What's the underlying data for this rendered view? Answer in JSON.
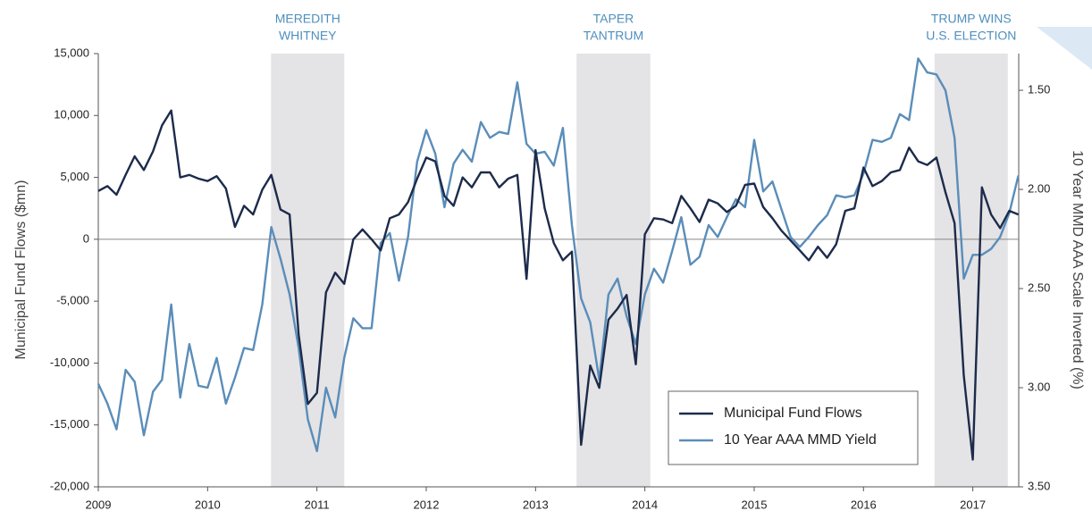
{
  "chart_data": {
    "type": "line",
    "y_label": "Municipal Fund Flows ($mn)",
    "y2_label": "10 Year MMD AAA Scale Inverted (%)",
    "x": [
      2009,
      2009.083,
      2009.167,
      2009.25,
      2009.333,
      2009.417,
      2009.5,
      2009.583,
      2009.667,
      2009.75,
      2009.833,
      2009.917,
      2010,
      2010.083,
      2010.167,
      2010.25,
      2010.333,
      2010.417,
      2010.5,
      2010.583,
      2010.667,
      2010.75,
      2010.833,
      2010.917,
      2011,
      2011.083,
      2011.167,
      2011.25,
      2011.333,
      2011.417,
      2011.5,
      2011.583,
      2011.667,
      2011.75,
      2011.833,
      2011.917,
      2012,
      2012.083,
      2012.167,
      2012.25,
      2012.333,
      2012.417,
      2012.5,
      2012.583,
      2012.667,
      2012.75,
      2012.833,
      2012.917,
      2013,
      2013.083,
      2013.167,
      2013.25,
      2013.333,
      2013.417,
      2013.5,
      2013.583,
      2013.667,
      2013.75,
      2013.833,
      2013.917,
      2014,
      2014.083,
      2014.167,
      2014.25,
      2014.333,
      2014.417,
      2014.5,
      2014.583,
      2014.667,
      2014.75,
      2014.833,
      2014.917,
      2015,
      2015.083,
      2015.167,
      2015.25,
      2015.333,
      2015.417,
      2015.5,
      2015.583,
      2015.667,
      2015.75,
      2015.833,
      2015.917,
      2016,
      2016.083,
      2016.167,
      2016.25,
      2016.333,
      2016.417,
      2016.5,
      2016.583,
      2016.667,
      2016.75,
      2016.833,
      2016.917,
      2017,
      2017.083,
      2017.167,
      2017.25,
      2017.333,
      2017.417
    ],
    "series": [
      {
        "name": "Municipal Fund Flows",
        "color": "#1c2b4b",
        "axis": "y",
        "values": [
          3900,
          4300,
          3600,
          5200,
          6700,
          5600,
          7100,
          9200,
          10400,
          5000,
          5200,
          4900,
          4700,
          5100,
          4100,
          1000,
          2700,
          2000,
          4000,
          5200,
          2400,
          2000,
          -7700,
          -13300,
          -12400,
          -4300,
          -2700,
          -3600,
          0,
          800,
          0,
          -900,
          1700,
          2000,
          3000,
          4900,
          6600,
          6300,
          3500,
          2700,
          5000,
          4200,
          5400,
          5400,
          4200,
          4900,
          5200,
          -3200,
          7200,
          2500,
          -300,
          -1700,
          -1000,
          -16600,
          -10200,
          -12000,
          -6500,
          -5600,
          -4500,
          -10100,
          400,
          1700,
          1600,
          1300,
          3500,
          2500,
          1400,
          3200,
          2900,
          2200,
          2700,
          4400,
          4500,
          2600,
          1700,
          700,
          -100,
          -900,
          -1700,
          -600,
          -1500,
          -400,
          2300,
          2500,
          5800,
          4300,
          4700,
          5400,
          5600,
          7400,
          6300,
          6000,
          6600,
          3800,
          1300,
          -11000,
          -17800,
          4200,
          2000,
          900,
          2300,
          2000
        ]
      },
      {
        "name": "10 Year AAA MMD Yield",
        "color": "#5a8db9",
        "axis": "y2",
        "values": [
          2.98,
          3.08,
          3.21,
          2.91,
          2.97,
          3.24,
          3.02,
          2.96,
          2.58,
          3.05,
          2.78,
          2.99,
          3.0,
          2.85,
          3.08,
          2.95,
          2.8,
          2.81,
          2.58,
          2.19,
          2.35,
          2.53,
          2.8,
          3.16,
          3.32,
          3.0,
          3.15,
          2.85,
          2.65,
          2.7,
          2.7,
          2.27,
          2.22,
          2.46,
          2.24,
          1.86,
          1.7,
          1.82,
          2.09,
          1.87,
          1.8,
          1.86,
          1.66,
          1.74,
          1.71,
          1.72,
          1.46,
          1.77,
          1.82,
          1.81,
          1.88,
          1.69,
          2.18,
          2.55,
          2.67,
          2.96,
          2.53,
          2.45,
          2.64,
          2.78,
          2.53,
          2.4,
          2.47,
          2.31,
          2.14,
          2.38,
          2.34,
          2.18,
          2.24,
          2.14,
          2.05,
          2.09,
          1.75,
          2.01,
          1.96,
          2.1,
          2.24,
          2.29,
          2.24,
          2.18,
          2.13,
          2.03,
          2.04,
          2.03,
          1.92,
          1.75,
          1.76,
          1.74,
          1.62,
          1.65,
          1.34,
          1.41,
          1.42,
          1.5,
          1.74,
          2.45,
          2.33,
          2.33,
          2.3,
          2.24,
          2.12,
          1.93
        ]
      }
    ],
    "xlim": [
      2009,
      2017.42
    ],
    "xticks": [
      2009,
      2010,
      2011,
      2012,
      2013,
      2014,
      2015,
      2016,
      2017
    ],
    "ylim": [
      -20000,
      15000
    ],
    "yticks": [
      {
        "value": -20000,
        "label": "-20,000"
      },
      {
        "value": -15000,
        "label": "-15,000"
      },
      {
        "value": -10000,
        "label": "-10,000"
      },
      {
        "value": -5000,
        "label": "-5,000"
      },
      0,
      {
        "value": 5000,
        "label": "5,000"
      },
      {
        "value": 10000,
        "label": "10,000"
      },
      {
        "value": 15000,
        "label": "15,000"
      }
    ],
    "y2lim": [
      3.5,
      1.315
    ],
    "y2ticks": [
      {
        "value": 3.5,
        "label": "3.50"
      },
      {
        "value": 3.0,
        "label": "3.00"
      },
      {
        "value": 2.5,
        "label": "2.50"
      },
      {
        "value": 2.0,
        "label": "2.00"
      },
      {
        "value": 1.5,
        "label": "1.50"
      }
    ],
    "annotations": [
      {
        "label": [
          "MEREDITH",
          "WHITNEY"
        ],
        "x_range": [
          2010.58,
          2011.25
        ]
      },
      {
        "label": [
          "TAPER",
          "TANTRUM"
        ],
        "x_range": [
          2013.375,
          2014.05
        ]
      },
      {
        "label": [
          "TRUMP WINS",
          "U.S. ELECTION"
        ],
        "x_range": [
          2016.65,
          2017.32
        ]
      }
    ],
    "legend": "lower right"
  }
}
